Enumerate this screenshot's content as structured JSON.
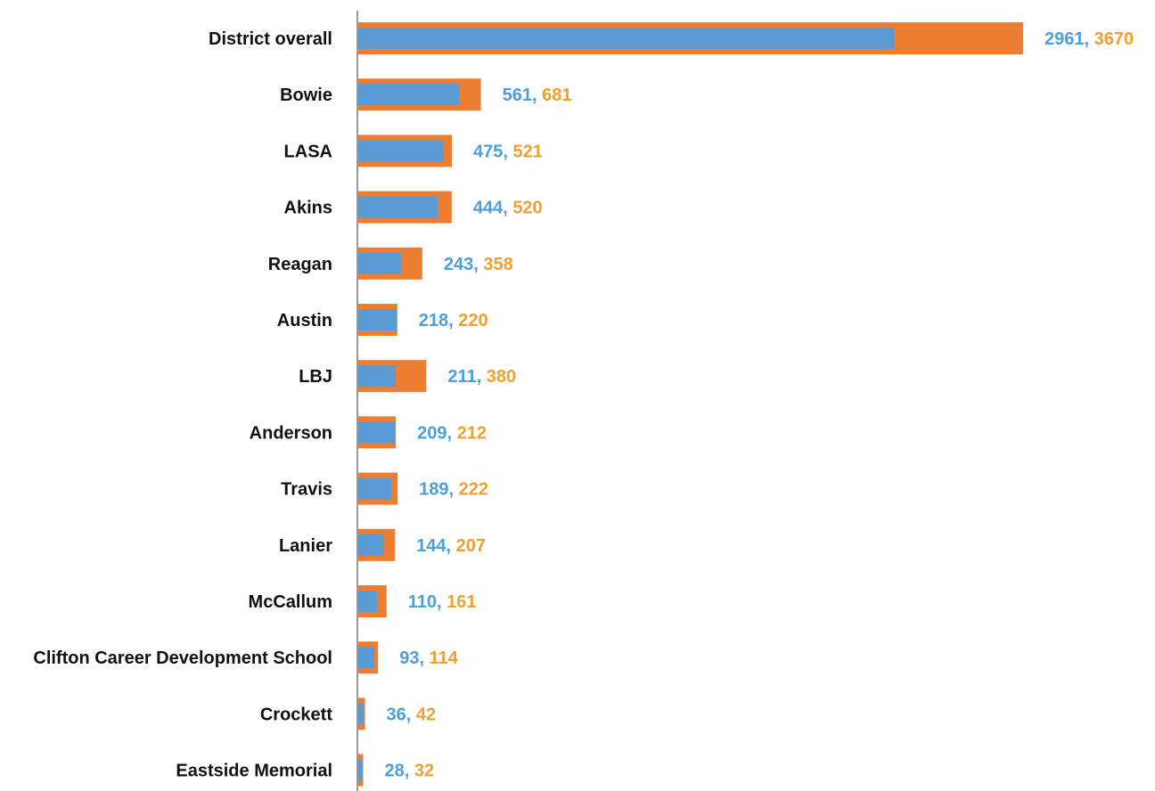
{
  "colors": {
    "series_a": "#5b9bd5",
    "series_b": "#ed7d31",
    "label_a": "#4a9fdc",
    "label_b": "#f0a030",
    "axis": "#999999"
  },
  "chart_data": {
    "type": "bar",
    "orientation": "horizontal",
    "title": "",
    "xlabel": "",
    "ylabel": "",
    "grid": false,
    "categories": [
      "District overall",
      "Bowie",
      "LASA",
      "Akins",
      "Reagan",
      "Austin",
      "LBJ",
      "Anderson",
      "Travis",
      "Lanier",
      "McCallum",
      "Clifton Career Development School",
      "Crockett",
      "Eastside Memorial"
    ],
    "series": [
      {
        "values": [
          2961,
          561,
          475,
          444,
          243,
          218,
          211,
          209,
          189,
          144,
          110,
          93,
          36,
          28
        ]
      },
      {
        "values": [
          3670,
          681,
          521,
          520,
          358,
          220,
          380,
          212,
          222,
          207,
          161,
          114,
          42,
          32
        ]
      }
    ],
    "xlim": [
      0,
      3670
    ],
    "label_separator": ","
  }
}
